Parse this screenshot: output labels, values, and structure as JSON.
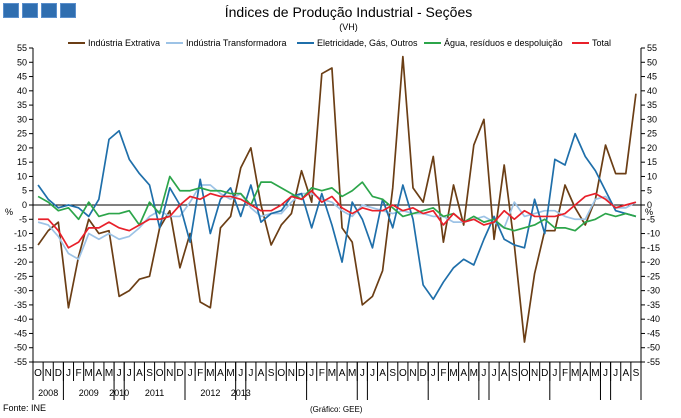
{
  "header": {
    "title": "Índices de Produção Industrial - Seções",
    "subtitle": "(VH)"
  },
  "footer": {
    "source": "Fonte: INE",
    "credit": "(Gráfico: GEE)"
  },
  "colors": {
    "logo": "#2f6eb0"
  },
  "chart_data": {
    "type": "line",
    "title": "Índices de Produção Industrial - Seções",
    "subtitle": "(VH)",
    "ylabel": "%",
    "xlabel": "",
    "ylim": [
      -55,
      55
    ],
    "ytick_step": 5,
    "y_axes": "left-and-right",
    "grid": false,
    "legend_position": "top",
    "categories": [
      "O",
      "N",
      "D",
      "J",
      "F",
      "M",
      "A",
      "M",
      "J",
      "J",
      "A",
      "S",
      "O",
      "N",
      "D",
      "J",
      "F",
      "M",
      "A",
      "M",
      "J",
      "J",
      "A",
      "S",
      "O",
      "N",
      "D",
      "J",
      "F",
      "M",
      "A",
      "M",
      "J",
      "J",
      "A",
      "S",
      "O",
      "N",
      "D",
      "J",
      "F",
      "M",
      "A",
      "M",
      "J",
      "J",
      "A",
      "S",
      "O",
      "N",
      "D",
      "J",
      "F",
      "M",
      "A",
      "M",
      "J",
      "J",
      "A",
      "S"
    ],
    "year_labels": [
      "2008",
      "2009",
      "2010",
      "2011",
      "2012",
      "2013"
    ],
    "series": [
      {
        "name": "Indústria Extrativa",
        "color": "#6b3e15",
        "values": [
          -14,
          -9,
          -6,
          -36,
          -18,
          -5,
          -10,
          -9,
          -32,
          -30,
          -26,
          -25,
          -8,
          -2,
          -22,
          -10,
          -34,
          -36,
          -8,
          -4,
          13,
          20,
          0,
          -14,
          -7,
          -3,
          12,
          1,
          46,
          48,
          -8,
          -13,
          -35,
          -32,
          -23,
          6,
          52,
          6,
          1,
          17,
          -13,
          7,
          -7,
          21,
          30,
          -12,
          14,
          -14,
          -48,
          -24,
          -9,
          -9,
          7,
          -1,
          -7,
          2,
          21,
          11,
          11,
          39
        ]
      },
      {
        "name": "Indústria Transformadora",
        "color": "#9dc3e6",
        "values": [
          -6,
          -7,
          -11,
          -17,
          -19,
          -10,
          -12,
          -10,
          -12,
          -11,
          -8,
          -4,
          -2,
          -4,
          -4,
          1,
          7,
          7,
          4,
          2,
          4,
          -1,
          -4,
          -3,
          -3,
          1,
          4,
          4,
          2,
          1,
          -2,
          -4,
          0,
          -1,
          -2,
          -3,
          -2,
          -3,
          -3,
          -4,
          -4,
          -6,
          -6,
          -5,
          -4,
          -6,
          -8,
          1,
          -4,
          -3,
          -2,
          -2,
          -4,
          -5,
          -5,
          2,
          3,
          -1,
          -1,
          1
        ]
      },
      {
        "name": "Eletricidade, Gás, Outros",
        "color": "#1f6faa",
        "values": [
          7,
          2,
          -1,
          0,
          -1,
          -4,
          2,
          23,
          26,
          16,
          11,
          7,
          -8,
          6,
          0,
          -13,
          9,
          -10,
          2,
          6,
          -4,
          7,
          -6,
          -3,
          -2,
          3,
          4,
          -8,
          4,
          -7,
          -20,
          1,
          -5,
          -15,
          2,
          -8,
          7,
          -5,
          -28,
          -33,
          -27,
          -22,
          -19,
          -21,
          -12,
          -4,
          -12,
          -14,
          -15,
          2,
          -10,
          16,
          14,
          25,
          17,
          12,
          5,
          -2,
          -3,
          -4
        ]
      },
      {
        "name": "Água, resíduos e despoluição",
        "color": "#2ca54a",
        "values": [
          3,
          1,
          -2,
          -1,
          -5,
          1,
          -4,
          -3,
          -3,
          -2,
          -7,
          1,
          -3,
          10,
          5,
          5,
          6,
          5,
          5,
          4,
          4,
          0,
          8,
          8,
          6,
          4,
          2,
          6,
          5,
          6,
          3,
          5,
          8,
          3,
          2,
          -1,
          -4,
          -3,
          -2,
          -1,
          -4,
          -3,
          -6,
          -4,
          -6,
          -5,
          -8,
          -9,
          -8,
          -7,
          -5,
          -8,
          -8,
          -9,
          -6,
          -5,
          -3,
          -4,
          -3,
          -4
        ]
      },
      {
        "name": "Total",
        "color": "#e8202a",
        "values": [
          -5,
          -5,
          -9,
          -15,
          -13,
          -8,
          -8,
          -6,
          -8,
          -9,
          -7,
          -5,
          -5,
          -4,
          0,
          3,
          2,
          4,
          3,
          3,
          2,
          0,
          -2,
          -2,
          0,
          3,
          2,
          5,
          1,
          3,
          -1,
          -3,
          -1,
          -2,
          -2,
          0,
          -2,
          -1,
          -3,
          -2,
          -7,
          -3,
          -6,
          -5,
          -7,
          -6,
          -2,
          -5,
          -2,
          -4,
          -4,
          -4,
          -3,
          0,
          3,
          4,
          2,
          -1,
          0,
          1
        ]
      }
    ]
  }
}
